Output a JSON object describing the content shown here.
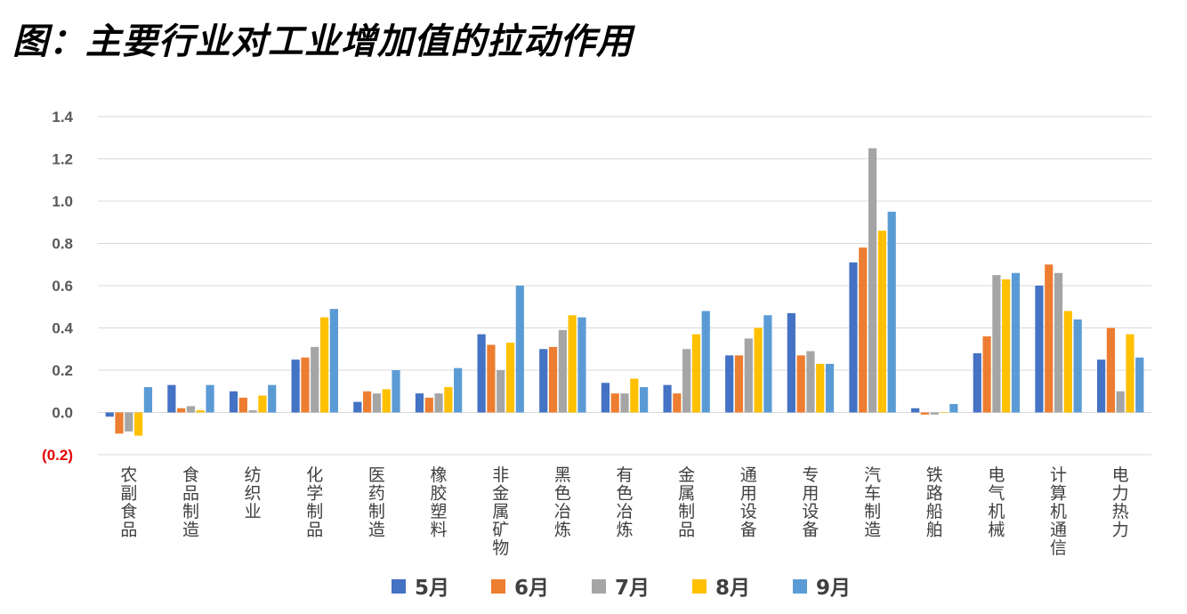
{
  "chart_data": {
    "type": "bar",
    "title": "图：主要行业对工业增加值的拉动作用",
    "ylim": [
      -0.2,
      1.4
    ],
    "yticks": [
      -0.2,
      0.0,
      0.2,
      0.4,
      0.6,
      0.8,
      1.0,
      1.2,
      1.4
    ],
    "ytick_labels": [
      "(0.2)",
      "0.0",
      "0.2",
      "0.4",
      "0.6",
      "0.8",
      "1.0",
      "1.2",
      "1.4"
    ],
    "grid": true,
    "legend_position": "bottom",
    "categories": [
      "农副食品",
      "食品制造",
      "纺织业",
      "化学制品",
      "医药制造",
      "橡胶塑料",
      "非金属矿物",
      "黑色冶炼",
      "有色冶炼",
      "金属制品",
      "通用设备",
      "专用设备",
      "汽车制造",
      "铁路船舶",
      "电气机械",
      "计算机通信",
      "电力热力"
    ],
    "series": [
      {
        "name": "5月",
        "color": "#4472c4",
        "values": [
          -0.02,
          0.13,
          0.1,
          0.25,
          0.05,
          0.09,
          0.37,
          0.3,
          0.14,
          0.13,
          0.27,
          0.47,
          0.71,
          0.02,
          0.28,
          0.6,
          0.25
        ]
      },
      {
        "name": "6月",
        "color": "#ed7d31",
        "values": [
          -0.1,
          0.02,
          0.07,
          0.26,
          0.1,
          0.07,
          0.32,
          0.31,
          0.09,
          0.09,
          0.27,
          0.27,
          0.78,
          -0.01,
          0.36,
          0.7,
          0.4
        ]
      },
      {
        "name": "7月",
        "color": "#a5a5a5",
        "values": [
          -0.09,
          0.03,
          0.01,
          0.31,
          0.09,
          0.09,
          0.2,
          0.39,
          0.09,
          0.3,
          0.35,
          0.29,
          1.25,
          -0.01,
          0.65,
          0.66,
          0.1
        ]
      },
      {
        "name": "8月",
        "color": "#ffc000",
        "values": [
          -0.11,
          0.01,
          0.08,
          0.45,
          0.11,
          0.12,
          0.33,
          0.46,
          0.16,
          0.37,
          0.4,
          0.23,
          0.86,
          0.0,
          0.63,
          0.48,
          0.37
        ]
      },
      {
        "name": "9月",
        "color": "#5b9bd5",
        "values": [
          0.12,
          0.13,
          0.13,
          0.49,
          0.2,
          0.21,
          0.6,
          0.45,
          0.12,
          0.48,
          0.46,
          0.23,
          0.95,
          0.04,
          0.66,
          0.44,
          0.26
        ]
      }
    ]
  }
}
